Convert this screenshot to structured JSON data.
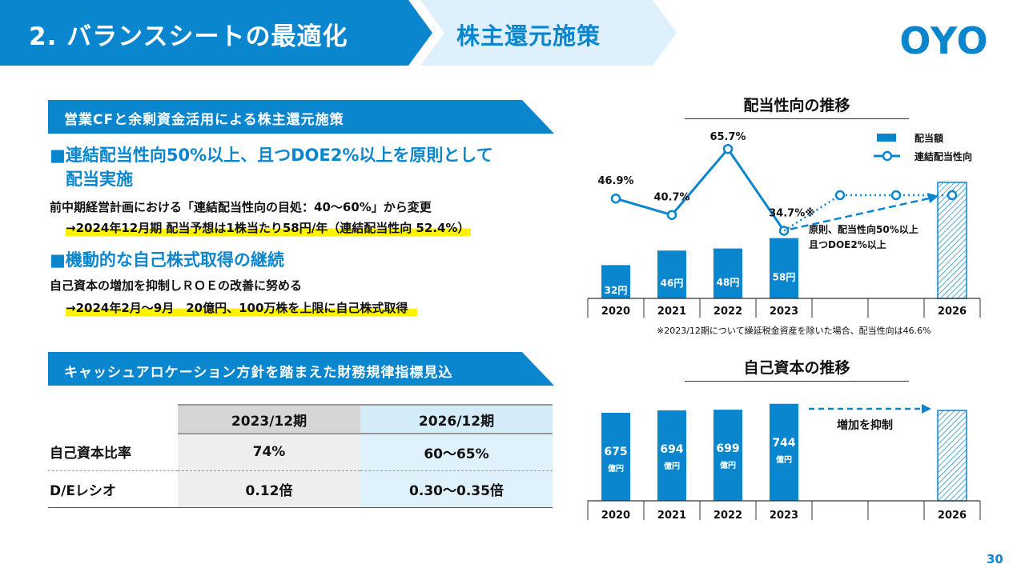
{
  "header": {
    "title": "2. バランスシートの最適化",
    "subtitle": "株主還元施策",
    "logo_text": "OYO"
  },
  "section1": {
    "title": "営業CFと余剰資金活用による株主還元施策",
    "bullet1_line1": "■連結配当性向50%以上、且つDOE2%以上を原則として",
    "bullet1_line2": "配当実施",
    "text1": "前中期経営計画における「連結配当性向の目処：40〜60%」から変更",
    "text2": "→2024年12月期 配当予想は1株当たり58円/年（連結配当性向 52.4%）",
    "bullet2": "■機動的な自己株式取得の継続",
    "text3": "自己資本の増加を抑制しＲＯＥの改善に努める",
    "text4": "→2024年2月〜9月　20億円、100万株を上限に自己株式取得"
  },
  "section2": {
    "title": "キャッシュアロケーション方針を踏まえた財務規律指標見込",
    "columns": [
      "",
      "2023/12期",
      "2026/12期"
    ],
    "rows": [
      {
        "label": "自己資本比率",
        "v2023": "74%",
        "v2026": "60〜65%"
      },
      {
        "label": "D/Eレシオ",
        "v2023": "0.12倍",
        "v2026": "0.30〜0.35倍"
      }
    ]
  },
  "chart1_meta": {
    "note_line1": "原則、配当性向50%以上",
    "note_line2": "且つDOE2%以上",
    "footnote": "※2023/12期について繰延税金資産を除いた場合、配当性向は46.6%"
  },
  "chart2_meta": {
    "arrow_label": "増加を抑制"
  },
  "page_number": "30",
  "colors": {
    "primary": "#0a86cf",
    "light": "#ddf0fb",
    "highlight": "#fff200"
  },
  "chart_data": [
    {
      "type": "bar",
      "title": "配当性向の推移",
      "categories": [
        "2020",
        "2021",
        "2022",
        "2023",
        "",
        "",
        "2026"
      ],
      "series": [
        {
          "name": "配当額",
          "values": [
            32,
            46,
            48,
            58,
            null,
            null,
            null
          ],
          "labels": [
            "32円",
            "46円",
            "48円",
            "58円",
            "",
            "",
            ""
          ]
        },
        {
          "name": "連結配当性向",
          "type": "line",
          "values": [
            46.9,
            40.7,
            65.7,
            34.7,
            null,
            null,
            null
          ],
          "labels": [
            "46.9%",
            "40.7%",
            "65.7%",
            "34.7%※",
            "",
            "",
            ""
          ]
        }
      ],
      "legend": "top-right"
    },
    {
      "type": "bar",
      "title": "自己資本の推移",
      "categories": [
        "2020",
        "2021",
        "2022",
        "2023",
        "",
        "",
        "2026"
      ],
      "series": [
        {
          "values": [
            675,
            694,
            699,
            744,
            null,
            null,
            null
          ],
          "labels": [
            "675",
            "694",
            "699",
            "744",
            "",
            "",
            ""
          ],
          "unit": "億円"
        }
      ]
    }
  ]
}
